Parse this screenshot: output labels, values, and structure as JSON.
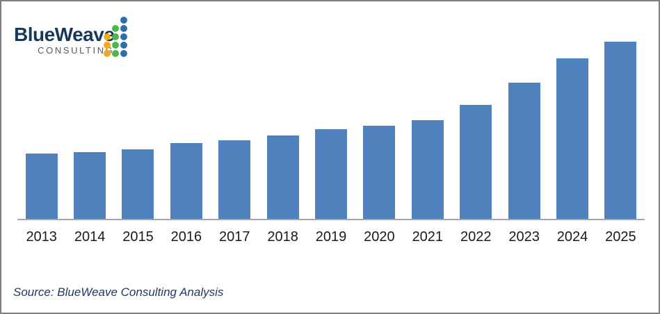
{
  "logo": {
    "name": "BlueWeave",
    "subtitle": "CONSULTING",
    "dots": {
      "rows": 5,
      "columns": [
        {
          "name": "orange-column",
          "color": "#F5A81C",
          "count": 3
        },
        {
          "name": "green-column",
          "color": "#4CB748",
          "count": 4
        },
        {
          "name": "blue-column",
          "color": "#2B6FAD",
          "count": 5
        }
      ]
    }
  },
  "chart_data": {
    "type": "bar",
    "title": "",
    "xlabel": "",
    "ylabel": "",
    "categories": [
      "2013",
      "2014",
      "2015",
      "2016",
      "2017",
      "2018",
      "2019",
      "2020",
      "2021",
      "2022",
      "2023",
      "2024",
      "2025"
    ],
    "values": [
      94,
      96,
      100,
      109,
      113,
      120,
      129,
      134,
      142,
      164,
      196,
      231,
      255
    ],
    "units": "relative bar height (no value axis shown in image)",
    "ylim": [
      0,
      255
    ],
    "gridlines": false,
    "legend_position": "none",
    "bar_color": "#4F81BD",
    "axis_line_color": "#A6A6A6"
  },
  "source": {
    "text": "Source: BlueWeave Consulting Analysis"
  },
  "colors": {
    "logo_name": "#17375D",
    "logo_subtitle": "#58595B",
    "source_text": "#1F3864",
    "frame_border": "#7F7F7F",
    "x_label": "#1A1A1A"
  }
}
